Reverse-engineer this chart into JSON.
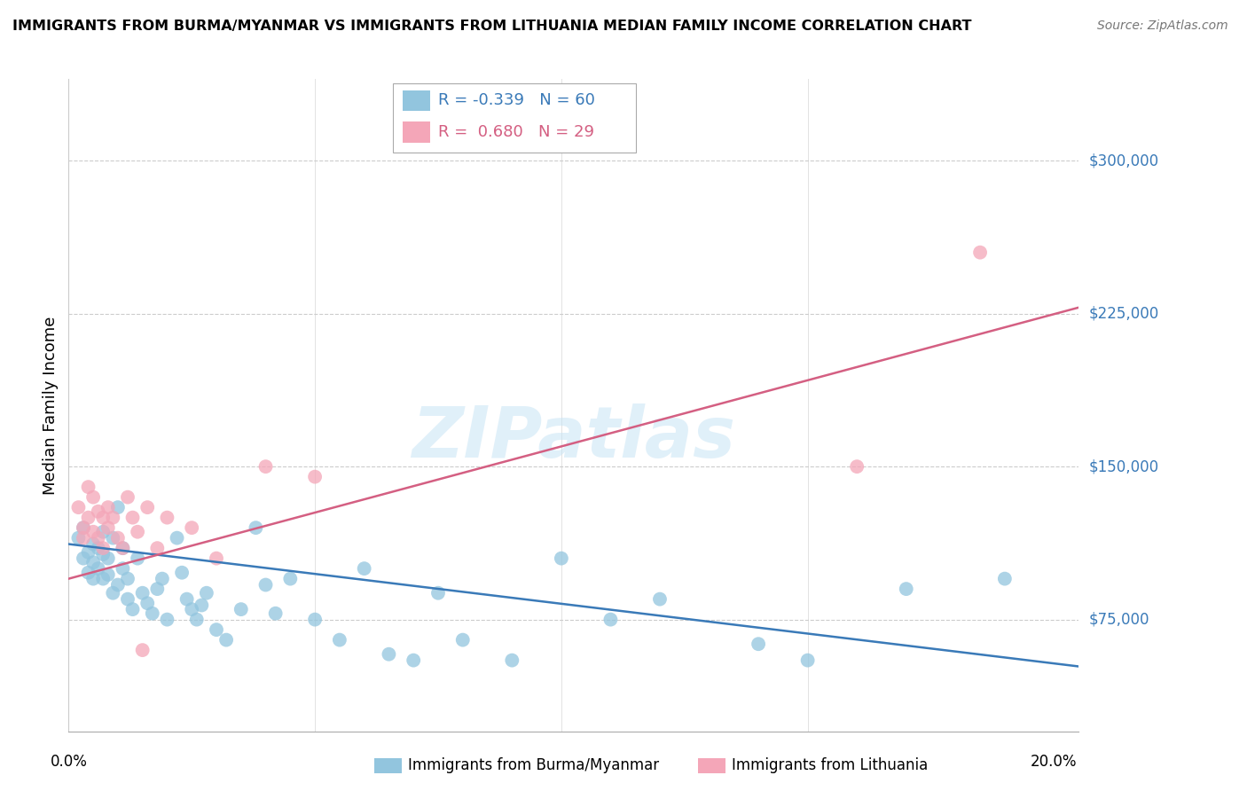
{
  "title": "IMMIGRANTS FROM BURMA/MYANMAR VS IMMIGRANTS FROM LITHUANIA MEDIAN FAMILY INCOME CORRELATION CHART",
  "source": "Source: ZipAtlas.com",
  "ylabel": "Median Family Income",
  "xlim": [
    0.0,
    0.205
  ],
  "ylim": [
    20000,
    340000
  ],
  "legend": {
    "blue_R": "-0.339",
    "blue_N": "60",
    "pink_R": "0.680",
    "pink_N": "29"
  },
  "watermark": "ZIPatlas",
  "blue_color": "#92c5de",
  "pink_color": "#f4a6b8",
  "blue_line_color": "#3a7ab8",
  "pink_line_color": "#d45f82",
  "blue_scatter_x": [
    0.002,
    0.003,
    0.003,
    0.004,
    0.004,
    0.005,
    0.005,
    0.005,
    0.006,
    0.006,
    0.007,
    0.007,
    0.007,
    0.008,
    0.008,
    0.009,
    0.009,
    0.01,
    0.01,
    0.011,
    0.011,
    0.012,
    0.012,
    0.013,
    0.014,
    0.015,
    0.016,
    0.017,
    0.018,
    0.019,
    0.02,
    0.022,
    0.023,
    0.024,
    0.025,
    0.026,
    0.027,
    0.028,
    0.03,
    0.032,
    0.035,
    0.038,
    0.04,
    0.042,
    0.045,
    0.05,
    0.055,
    0.06,
    0.065,
    0.07,
    0.075,
    0.08,
    0.09,
    0.1,
    0.11,
    0.12,
    0.14,
    0.15,
    0.17,
    0.19
  ],
  "blue_scatter_y": [
    115000,
    105000,
    120000,
    108000,
    98000,
    112000,
    103000,
    95000,
    110000,
    100000,
    107000,
    95000,
    118000,
    105000,
    97000,
    88000,
    115000,
    92000,
    130000,
    100000,
    110000,
    85000,
    95000,
    80000,
    105000,
    88000,
    83000,
    78000,
    90000,
    95000,
    75000,
    115000,
    98000,
    85000,
    80000,
    75000,
    82000,
    88000,
    70000,
    65000,
    80000,
    120000,
    92000,
    78000,
    95000,
    75000,
    65000,
    100000,
    58000,
    55000,
    88000,
    65000,
    55000,
    105000,
    75000,
    85000,
    63000,
    55000,
    90000,
    95000
  ],
  "pink_scatter_x": [
    0.002,
    0.003,
    0.003,
    0.004,
    0.004,
    0.005,
    0.005,
    0.006,
    0.006,
    0.007,
    0.007,
    0.008,
    0.008,
    0.009,
    0.01,
    0.011,
    0.012,
    0.013,
    0.014,
    0.015,
    0.016,
    0.018,
    0.02,
    0.025,
    0.03,
    0.04,
    0.05,
    0.16,
    0.185
  ],
  "pink_scatter_y": [
    130000,
    115000,
    120000,
    140000,
    125000,
    135000,
    118000,
    128000,
    115000,
    125000,
    110000,
    130000,
    120000,
    125000,
    115000,
    110000,
    135000,
    125000,
    118000,
    60000,
    130000,
    110000,
    125000,
    120000,
    105000,
    150000,
    145000,
    150000,
    255000
  ],
  "blue_trend_x": [
    0.0,
    0.205
  ],
  "blue_trend_y": [
    112000,
    52000
  ],
  "pink_trend_x": [
    0.0,
    0.205
  ],
  "pink_trend_y": [
    95000,
    228000
  ],
  "ytick_vals": [
    75000,
    150000,
    225000,
    300000
  ],
  "ytick_labels": [
    "$75,000",
    "$150,000",
    "$225,000",
    "$300,000"
  ],
  "xtick_vals": [
    0.0,
    0.05,
    0.1,
    0.15,
    0.2
  ],
  "xtick_labels": [
    "0.0%",
    "",
    "",
    "",
    "20.0%"
  ]
}
